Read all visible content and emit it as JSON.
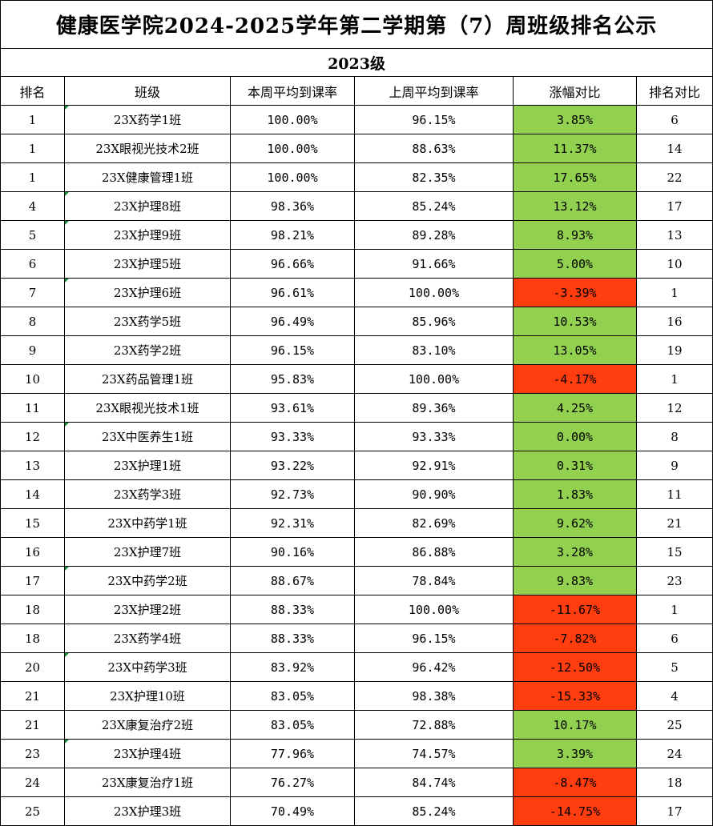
{
  "title": "健康医学院2024-2025学年第二学期第（7）周班级排名公示",
  "subtitle": "2023级",
  "headers": [
    "排名",
    "班级",
    "本周平均到课率",
    "上周平均到课率",
    "涨幅对比",
    "排名对比"
  ],
  "colors": {
    "positive": "#92d050",
    "negative": "#ff3d0f",
    "marker": "#1a8a3a"
  },
  "rows": [
    {
      "rank": "1",
      "class": "23X药学1班",
      "this_week": "100.00%",
      "last_week": "96.15%",
      "change": "3.85%",
      "trend": "up",
      "rank_prev": "6",
      "marked": true
    },
    {
      "rank": "1",
      "class": "23X眼视光技术2班",
      "this_week": "100.00%",
      "last_week": "88.63%",
      "change": "11.37%",
      "trend": "up",
      "rank_prev": "14",
      "marked": false
    },
    {
      "rank": "1",
      "class": "23X健康管理1班",
      "this_week": "100.00%",
      "last_week": "82.35%",
      "change": "17.65%",
      "trend": "up",
      "rank_prev": "22",
      "marked": false
    },
    {
      "rank": "4",
      "class": "23X护理8班",
      "this_week": "98.36%",
      "last_week": "85.24%",
      "change": "13.12%",
      "trend": "up",
      "rank_prev": "17",
      "marked": true
    },
    {
      "rank": "5",
      "class": "23X护理9班",
      "this_week": "98.21%",
      "last_week": "89.28%",
      "change": "8.93%",
      "trend": "up",
      "rank_prev": "13",
      "marked": true
    },
    {
      "rank": "6",
      "class": "23X护理5班",
      "this_week": "96.66%",
      "last_week": "91.66%",
      "change": "5.00%",
      "trend": "up",
      "rank_prev": "10",
      "marked": false
    },
    {
      "rank": "7",
      "class": "23X护理6班",
      "this_week": "96.61%",
      "last_week": "100.00%",
      "change": "-3.39%",
      "trend": "down",
      "rank_prev": "1",
      "marked": true
    },
    {
      "rank": "8",
      "class": "23X药学5班",
      "this_week": "96.49%",
      "last_week": "85.96%",
      "change": "10.53%",
      "trend": "up",
      "rank_prev": "16",
      "marked": false
    },
    {
      "rank": "9",
      "class": "23X药学2班",
      "this_week": "96.15%",
      "last_week": "83.10%",
      "change": "13.05%",
      "trend": "up",
      "rank_prev": "19",
      "marked": false
    },
    {
      "rank": "10",
      "class": "23X药品管理1班",
      "this_week": "95.83%",
      "last_week": "100.00%",
      "change": "-4.17%",
      "trend": "down",
      "rank_prev": "1",
      "marked": false
    },
    {
      "rank": "11",
      "class": "23X眼视光技术1班",
      "this_week": "93.61%",
      "last_week": "89.36%",
      "change": "4.25%",
      "trend": "up",
      "rank_prev": "12",
      "marked": false
    },
    {
      "rank": "12",
      "class": "23X中医养生1班",
      "this_week": "93.33%",
      "last_week": "93.33%",
      "change": "0.00%",
      "trend": "up",
      "rank_prev": "8",
      "marked": true
    },
    {
      "rank": "13",
      "class": "23X护理1班",
      "this_week": "93.22%",
      "last_week": "92.91%",
      "change": "0.31%",
      "trend": "up",
      "rank_prev": "9",
      "marked": false
    },
    {
      "rank": "14",
      "class": "23X药学3班",
      "this_week": "92.73%",
      "last_week": "90.90%",
      "change": "1.83%",
      "trend": "up",
      "rank_prev": "11",
      "marked": false
    },
    {
      "rank": "15",
      "class": "23X中药学1班",
      "this_week": "92.31%",
      "last_week": "82.69%",
      "change": "9.62%",
      "trend": "up",
      "rank_prev": "21",
      "marked": false
    },
    {
      "rank": "16",
      "class": "23X护理7班",
      "this_week": "90.16%",
      "last_week": "86.88%",
      "change": "3.28%",
      "trend": "up",
      "rank_prev": "15",
      "marked": false
    },
    {
      "rank": "17",
      "class": "23X中药学2班",
      "this_week": "88.67%",
      "last_week": "78.84%",
      "change": "9.83%",
      "trend": "up",
      "rank_prev": "23",
      "marked": true
    },
    {
      "rank": "18",
      "class": "23X护理2班",
      "this_week": "88.33%",
      "last_week": "100.00%",
      "change": "-11.67%",
      "trend": "down",
      "rank_prev": "1",
      "marked": false
    },
    {
      "rank": "18",
      "class": "23X药学4班",
      "this_week": "88.33%",
      "last_week": "96.15%",
      "change": "-7.82%",
      "trend": "down",
      "rank_prev": "6",
      "marked": false
    },
    {
      "rank": "20",
      "class": "23X中药学3班",
      "this_week": "83.92%",
      "last_week": "96.42%",
      "change": "-12.50%",
      "trend": "down",
      "rank_prev": "5",
      "marked": true
    },
    {
      "rank": "21",
      "class": "23X护理10班",
      "this_week": "83.05%",
      "last_week": "98.38%",
      "change": "-15.33%",
      "trend": "down",
      "rank_prev": "4",
      "marked": false
    },
    {
      "rank": "21",
      "class": "23X康复治疗2班",
      "this_week": "83.05%",
      "last_week": "72.88%",
      "change": "10.17%",
      "trend": "up",
      "rank_prev": "25",
      "marked": false
    },
    {
      "rank": "23",
      "class": "23X护理4班",
      "this_week": "77.96%",
      "last_week": "74.57%",
      "change": "3.39%",
      "trend": "up",
      "rank_prev": "24",
      "marked": true
    },
    {
      "rank": "24",
      "class": "23X康复治疗1班",
      "this_week": "76.27%",
      "last_week": "84.74%",
      "change": "-8.47%",
      "trend": "down",
      "rank_prev": "18",
      "marked": false
    },
    {
      "rank": "25",
      "class": "23X护理3班",
      "this_week": "70.49%",
      "last_week": "85.24%",
      "change": "-14.75%",
      "trend": "down",
      "rank_prev": "17",
      "marked": false
    }
  ]
}
